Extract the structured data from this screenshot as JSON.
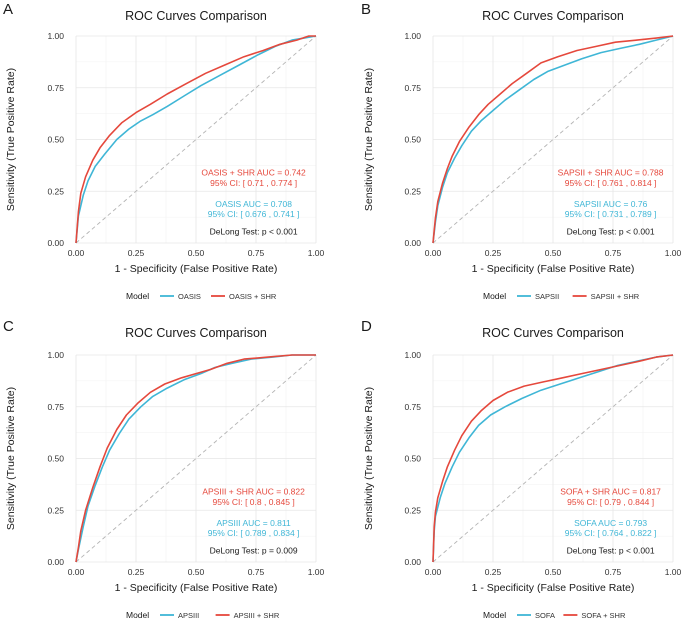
{
  "chart_data": [
    {
      "type": "line",
      "panel_label": "A",
      "title": "ROC Curves Comparison",
      "xlabel": "1 - Specificity (False Positive Rate)",
      "ylabel": "Sensitivity (True Positive Rate)",
      "xlim": [
        0,
        1
      ],
      "ylim": [
        0,
        1
      ],
      "x_ticks": [
        "0.00",
        "0.25",
        "0.50",
        "0.75",
        "1.00"
      ],
      "y_ticks": [
        "0.00",
        "0.25",
        "0.50",
        "0.75",
        "1.00"
      ],
      "grid": true,
      "legend": {
        "title": "Model",
        "position": "bottom",
        "items": [
          "OASIS",
          "OASIS + SHR"
        ]
      },
      "colors": {
        "base": "#3fb6d6",
        "shr": "#e5483c",
        "diag": "#b4b4b4",
        "text": "#1a1a1a"
      },
      "series": [
        {
          "name": "OASIS",
          "color": "#3fb6d6",
          "points": [
            [
              0,
              0
            ],
            [
              0.01,
              0.13
            ],
            [
              0.03,
              0.23
            ],
            [
              0.05,
              0.3
            ],
            [
              0.08,
              0.37
            ],
            [
              0.12,
              0.43
            ],
            [
              0.17,
              0.5
            ],
            [
              0.22,
              0.55
            ],
            [
              0.27,
              0.59
            ],
            [
              0.32,
              0.62
            ],
            [
              0.38,
              0.66
            ],
            [
              0.45,
              0.71
            ],
            [
              0.52,
              0.76
            ],
            [
              0.6,
              0.81
            ],
            [
              0.68,
              0.86
            ],
            [
              0.76,
              0.91
            ],
            [
              0.83,
              0.95
            ],
            [
              0.9,
              0.98
            ],
            [
              0.95,
              0.99
            ],
            [
              1,
              1
            ]
          ]
        },
        {
          "name": "OASIS + SHR",
          "color": "#e5483c",
          "points": [
            [
              0,
              0
            ],
            [
              0.01,
              0.15
            ],
            [
              0.02,
              0.24
            ],
            [
              0.04,
              0.32
            ],
            [
              0.07,
              0.4
            ],
            [
              0.1,
              0.46
            ],
            [
              0.14,
              0.52
            ],
            [
              0.19,
              0.58
            ],
            [
              0.25,
              0.63
            ],
            [
              0.31,
              0.67
            ],
            [
              0.38,
              0.72
            ],
            [
              0.46,
              0.77
            ],
            [
              0.54,
              0.82
            ],
            [
              0.62,
              0.86
            ],
            [
              0.7,
              0.9
            ],
            [
              0.78,
              0.93
            ],
            [
              0.85,
              0.96
            ],
            [
              0.92,
              0.98
            ],
            [
              0.97,
              1.0
            ],
            [
              1,
              1
            ]
          ]
        }
      ],
      "annotations": {
        "shr_auc": "OASIS + SHR AUC = 0.742",
        "shr_ci": "95% CI: [ 0.71 , 0.774 ]",
        "base_auc": "OASIS AUC = 0.708",
        "base_ci": "95% CI: [ 0.676 , 0.741 ]",
        "delong": "DeLong Test: p < 0.001"
      }
    },
    {
      "type": "line",
      "panel_label": "B",
      "title": "ROC Curves Comparison",
      "xlabel": "1 - Specificity (False Positive Rate)",
      "ylabel": "Sensitivity (True Positive Rate)",
      "xlim": [
        0,
        1
      ],
      "ylim": [
        0,
        1
      ],
      "x_ticks": [
        "0.00",
        "0.25",
        "0.50",
        "0.75",
        "1.00"
      ],
      "y_ticks": [
        "0.00",
        "0.25",
        "0.50",
        "0.75",
        "1.00"
      ],
      "grid": true,
      "legend": {
        "title": "Model",
        "position": "bottom",
        "items": [
          "SAPSII",
          "SAPSII + SHR"
        ]
      },
      "colors": {
        "base": "#3fb6d6",
        "shr": "#e5483c",
        "diag": "#b4b4b4",
        "text": "#1a1a1a"
      },
      "series": [
        {
          "name": "SAPSII",
          "color": "#3fb6d6",
          "points": [
            [
              0,
              0
            ],
            [
              0.01,
              0.1
            ],
            [
              0.02,
              0.18
            ],
            [
              0.04,
              0.27
            ],
            [
              0.06,
              0.34
            ],
            [
              0.09,
              0.41
            ],
            [
              0.12,
              0.47
            ],
            [
              0.16,
              0.54
            ],
            [
              0.2,
              0.59
            ],
            [
              0.25,
              0.64
            ],
            [
              0.3,
              0.69
            ],
            [
              0.36,
              0.74
            ],
            [
              0.42,
              0.79
            ],
            [
              0.48,
              0.83
            ],
            [
              0.55,
              0.86
            ],
            [
              0.62,
              0.89
            ],
            [
              0.7,
              0.92
            ],
            [
              0.78,
              0.94
            ],
            [
              0.86,
              0.96
            ],
            [
              0.93,
              0.98
            ],
            [
              1,
              1
            ]
          ]
        },
        {
          "name": "SAPSII + SHR",
          "color": "#e5483c",
          "points": [
            [
              0,
              0
            ],
            [
              0.01,
              0.12
            ],
            [
              0.02,
              0.2
            ],
            [
              0.04,
              0.29
            ],
            [
              0.06,
              0.36
            ],
            [
              0.08,
              0.42
            ],
            [
              0.11,
              0.49
            ],
            [
              0.15,
              0.56
            ],
            [
              0.19,
              0.62
            ],
            [
              0.23,
              0.67
            ],
            [
              0.28,
              0.72
            ],
            [
              0.33,
              0.77
            ],
            [
              0.39,
              0.82
            ],
            [
              0.45,
              0.87
            ],
            [
              0.52,
              0.9
            ],
            [
              0.6,
              0.93
            ],
            [
              0.68,
              0.95
            ],
            [
              0.76,
              0.97
            ],
            [
              0.85,
              0.98
            ],
            [
              0.93,
              0.99
            ],
            [
              1,
              1
            ]
          ]
        }
      ],
      "annotations": {
        "shr_auc": "SAPSII + SHR AUC = 0.788",
        "shr_ci": "95% CI: [ 0.761 , 0.814 ]",
        "base_auc": "SAPSII AUC = 0.76",
        "base_ci": "95% CI: [ 0.731 , 0.789 ]",
        "delong": "DeLong Test: p < 0.001"
      }
    },
    {
      "type": "line",
      "panel_label": "C",
      "title": "ROC Curves Comparison",
      "xlabel": "1 - Specificity (False Positive Rate)",
      "ylabel": "Sensitivity (True Positive Rate)",
      "xlim": [
        0,
        1
      ],
      "ylim": [
        0,
        1
      ],
      "x_ticks": [
        "0.00",
        "0.25",
        "0.50",
        "0.75",
        "1.00"
      ],
      "y_ticks": [
        "0.00",
        "0.25",
        "0.50",
        "0.75",
        "1.00"
      ],
      "grid": true,
      "legend": {
        "title": "Model",
        "position": "bottom",
        "items": [
          "APSIII",
          "APSIII + SHR"
        ]
      },
      "colors": {
        "base": "#3fb6d6",
        "shr": "#e5483c",
        "diag": "#b4b4b4",
        "text": "#1a1a1a"
      },
      "series": [
        {
          "name": "APSIII",
          "color": "#3fb6d6",
          "points": [
            [
              0,
              0
            ],
            [
              0.01,
              0.06
            ],
            [
              0.03,
              0.17
            ],
            [
              0.05,
              0.27
            ],
            [
              0.08,
              0.37
            ],
            [
              0.11,
              0.46
            ],
            [
              0.14,
              0.54
            ],
            [
              0.18,
              0.62
            ],
            [
              0.22,
              0.69
            ],
            [
              0.27,
              0.75
            ],
            [
              0.32,
              0.8
            ],
            [
              0.38,
              0.84
            ],
            [
              0.45,
              0.88
            ],
            [
              0.52,
              0.91
            ],
            [
              0.58,
              0.94
            ],
            [
              0.65,
              0.96
            ],
            [
              0.73,
              0.98
            ],
            [
              0.82,
              0.99
            ],
            [
              0.9,
              1.0
            ],
            [
              1,
              1
            ]
          ]
        },
        {
          "name": "APSIII + SHR",
          "color": "#e5483c",
          "points": [
            [
              0,
              0
            ],
            [
              0.01,
              0.07
            ],
            [
              0.02,
              0.15
            ],
            [
              0.04,
              0.25
            ],
            [
              0.07,
              0.36
            ],
            [
              0.1,
              0.46
            ],
            [
              0.13,
              0.55
            ],
            [
              0.17,
              0.64
            ],
            [
              0.21,
              0.71
            ],
            [
              0.26,
              0.77
            ],
            [
              0.31,
              0.82
            ],
            [
              0.37,
              0.86
            ],
            [
              0.44,
              0.89
            ],
            [
              0.5,
              0.91
            ],
            [
              0.56,
              0.93
            ],
            [
              0.63,
              0.96
            ],
            [
              0.7,
              0.98
            ],
            [
              0.8,
              0.99
            ],
            [
              0.9,
              1.0
            ],
            [
              1,
              1
            ]
          ]
        }
      ],
      "annotations": {
        "shr_auc": "APSIII + SHR AUC = 0.822",
        "shr_ci": "95% CI: [ 0.8 , 0.845 ]",
        "base_auc": "APSIII AUC = 0.811",
        "base_ci": "95% CI: [ 0.789 , 0.834 ]",
        "delong": "DeLong Test: p = 0.009"
      }
    },
    {
      "type": "line",
      "panel_label": "D",
      "title": "ROC Curves Comparison",
      "xlabel": "1 - Specificity (False Positive Rate)",
      "ylabel": "Sensitivity (True Positive Rate)",
      "xlim": [
        0,
        1
      ],
      "ylim": [
        0,
        1
      ],
      "x_ticks": [
        "0.00",
        "0.25",
        "0.50",
        "0.75",
        "1.00"
      ],
      "y_ticks": [
        "0.00",
        "0.25",
        "0.50",
        "0.75",
        "1.00"
      ],
      "grid": true,
      "legend": {
        "title": "Model",
        "position": "bottom",
        "items": [
          "SOFA",
          "SOFA + SHR"
        ]
      },
      "colors": {
        "base": "#3fb6d6",
        "shr": "#e5483c",
        "diag": "#b4b4b4",
        "text": "#1a1a1a"
      },
      "series": [
        {
          "name": "SOFA",
          "color": "#3fb6d6",
          "points": [
            [
              0,
              0
            ],
            [
              0.005,
              0.15
            ],
            [
              0.01,
              0.22
            ],
            [
              0.03,
              0.31
            ],
            [
              0.05,
              0.38
            ],
            [
              0.08,
              0.46
            ],
            [
              0.11,
              0.53
            ],
            [
              0.15,
              0.6
            ],
            [
              0.19,
              0.66
            ],
            [
              0.24,
              0.71
            ],
            [
              0.3,
              0.75
            ],
            [
              0.37,
              0.79
            ],
            [
              0.45,
              0.83
            ],
            [
              0.53,
              0.86
            ],
            [
              0.61,
              0.89
            ],
            [
              0.69,
              0.92
            ],
            [
              0.77,
              0.95
            ],
            [
              0.85,
              0.97
            ],
            [
              0.93,
              0.99
            ],
            [
              1,
              1
            ]
          ]
        },
        {
          "name": "SOFA + SHR",
          "color": "#e5483c",
          "points": [
            [
              0,
              0
            ],
            [
              0.005,
              0.17
            ],
            [
              0.01,
              0.24
            ],
            [
              0.02,
              0.31
            ],
            [
              0.04,
              0.39
            ],
            [
              0.06,
              0.46
            ],
            [
              0.09,
              0.54
            ],
            [
              0.12,
              0.61
            ],
            [
              0.16,
              0.68
            ],
            [
              0.2,
              0.73
            ],
            [
              0.25,
              0.78
            ],
            [
              0.31,
              0.82
            ],
            [
              0.38,
              0.85
            ],
            [
              0.46,
              0.87
            ],
            [
              0.54,
              0.89
            ],
            [
              0.62,
              0.91
            ],
            [
              0.7,
              0.93
            ],
            [
              0.78,
              0.95
            ],
            [
              0.86,
              0.97
            ],
            [
              0.93,
              0.99
            ],
            [
              1,
              1
            ]
          ]
        }
      ],
      "annotations": {
        "shr_auc": "SOFA + SHR AUC = 0.817",
        "shr_ci": "95% CI: [ 0.79 , 0.844 ]",
        "base_auc": "SOFA AUC = 0.793",
        "base_ci": "95% CI: [ 0.764 , 0.822 ]",
        "delong": "DeLong Test: p < 0.001"
      }
    }
  ]
}
